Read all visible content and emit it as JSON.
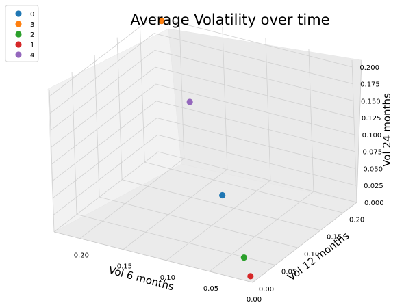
{
  "chart_data": {
    "type": "scatter",
    "projection": "3d",
    "title": "Average Volatility over time",
    "xlabel": "Vol 6 months",
    "ylabel": "Vol 12 months",
    "zlabel": "Vol 24 months",
    "xlim": [
      0.0,
      0.23
    ],
    "ylim": [
      0.0,
      0.23
    ],
    "zlim": [
      0.0,
      0.21
    ],
    "xticks": [
      "0.00",
      "0.05",
      "0.10",
      "0.15",
      "0.20"
    ],
    "yticks": [
      "0.00",
      "0.05",
      "0.10",
      "0.15",
      "0.20"
    ],
    "zticks": [
      "0.000",
      "0.025",
      "0.050",
      "0.075",
      "0.100",
      "0.125",
      "0.150",
      "0.175",
      "0.200"
    ],
    "grid": true,
    "legend_position": "top-left",
    "series": [
      {
        "name": "0",
        "color": "#1f77b4",
        "x": 0.07,
        "y": 0.07,
        "z": 0.07
      },
      {
        "name": "3",
        "color": "#ff7f0e",
        "x": 0.21,
        "y": 0.21,
        "z": 0.21
      },
      {
        "name": "2",
        "color": "#2ca02c",
        "x": 0.02,
        "y": 0.02,
        "z": 0.02
      },
      {
        "name": "1",
        "color": "#d62728",
        "x": 0.005,
        "y": 0.005,
        "z": 0.005
      },
      {
        "name": "4",
        "color": "#9467bd",
        "x": 0.145,
        "y": 0.145,
        "z": 0.145
      }
    ]
  }
}
